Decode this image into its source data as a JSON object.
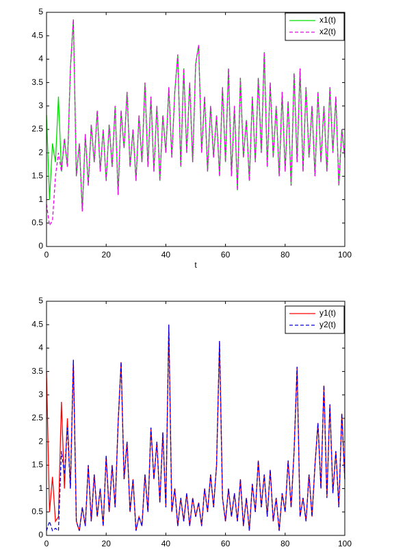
{
  "chart_data": [
    {
      "type": "line",
      "xlabel": "t",
      "legend": "upper right",
      "xlim": [
        0,
        100
      ],
      "ylim": [
        0,
        5
      ],
      "xticks": [
        0,
        20,
        40,
        60,
        80,
        100
      ],
      "yticks": [
        0,
        0.5,
        1,
        1.5,
        2,
        2.5,
        3,
        3.5,
        4,
        4.5,
        5
      ],
      "x": [
        0,
        1,
        2,
        3,
        4,
        5,
        6,
        7,
        8,
        9,
        10,
        11,
        12,
        13,
        14,
        15,
        16,
        17,
        18,
        19,
        20,
        21,
        22,
        23,
        24,
        25,
        26,
        27,
        28,
        29,
        30,
        31,
        32,
        33,
        34,
        35,
        36,
        37,
        38,
        39,
        40,
        41,
        42,
        43,
        44,
        45,
        46,
        47,
        48,
        49,
        50,
        51,
        52,
        53,
        54,
        55,
        56,
        57,
        58,
        59,
        60,
        61,
        62,
        63,
        64,
        65,
        66,
        67,
        68,
        69,
        70,
        71,
        72,
        73,
        74,
        75,
        76,
        77,
        78,
        79,
        80,
        81,
        82,
        83,
        84,
        85,
        86,
        87,
        88,
        89,
        90,
        91,
        92,
        93,
        94,
        95,
        96,
        97,
        98,
        99,
        100
      ],
      "series": [
        {
          "name": "x1(t)",
          "color": "#00dd00",
          "dash": false,
          "values": [
            2.8,
            1.0,
            2.2,
            1.8,
            3.2,
            1.6,
            2.3,
            1.7,
            3.8,
            4.85,
            1.5,
            2.2,
            0.75,
            2.4,
            1.3,
            2.6,
            1.8,
            2.9,
            1.6,
            2.5,
            1.4,
            2.6,
            1.7,
            3.0,
            1.1,
            2.9,
            2.1,
            3.3,
            1.7,
            2.5,
            1.4,
            2.8,
            1.8,
            3.5,
            1.7,
            3.2,
            1.6,
            3.0,
            1.4,
            2.8,
            2.0,
            3.4,
            1.9,
            3.3,
            4.1,
            1.7,
            3.8,
            2.0,
            3.5,
            1.8,
            3.9,
            4.3,
            2.0,
            3.2,
            1.6,
            3.0,
            1.9,
            2.8,
            1.5,
            3.4,
            1.8,
            3.8,
            1.5,
            3.0,
            1.2,
            3.6,
            1.9,
            2.7,
            1.4,
            3.2,
            1.8,
            3.6,
            2.0,
            4.15,
            1.7,
            3.5,
            1.9,
            3.0,
            1.5,
            3.3,
            1.6,
            3.1,
            1.3,
            3.7,
            1.8,
            3.8,
            1.6,
            3.4,
            1.9,
            3.0,
            1.5,
            3.3,
            1.8,
            3.0,
            1.6,
            3.4,
            2.0,
            3.2,
            1.3,
            2.5,
            1.9
          ]
        },
        {
          "name": "x2(t)",
          "color": "#ee00ee",
          "dash": true,
          "values": [
            0.9,
            0.45,
            0.55,
            1.5,
            2.0,
            1.6,
            2.3,
            1.7,
            3.8,
            4.85,
            1.5,
            2.2,
            0.75,
            2.4,
            1.3,
            2.6,
            1.8,
            2.9,
            1.6,
            2.5,
            1.4,
            2.6,
            1.7,
            3.0,
            1.1,
            2.9,
            2.1,
            3.3,
            1.7,
            2.5,
            1.4,
            2.8,
            1.8,
            3.5,
            1.7,
            3.2,
            1.6,
            3.0,
            1.4,
            2.8,
            2.0,
            3.4,
            1.9,
            3.3,
            4.1,
            1.7,
            3.8,
            2.0,
            3.5,
            1.8,
            3.9,
            4.3,
            2.0,
            3.2,
            1.6,
            3.0,
            1.9,
            2.8,
            1.5,
            3.4,
            1.8,
            3.8,
            1.5,
            3.0,
            1.2,
            3.6,
            1.9,
            2.7,
            1.4,
            3.2,
            1.8,
            3.6,
            2.0,
            4.15,
            1.7,
            3.5,
            1.9,
            3.0,
            1.5,
            3.3,
            1.6,
            3.1,
            1.3,
            3.7,
            1.8,
            3.8,
            1.6,
            3.4,
            1.9,
            3.0,
            1.5,
            3.3,
            1.8,
            3.0,
            1.6,
            3.4,
            2.0,
            3.2,
            1.3,
            2.5,
            1.9
          ]
        }
      ]
    },
    {
      "type": "line",
      "legend": "upper right",
      "xlim": [
        0,
        100
      ],
      "ylim": [
        0,
        5
      ],
      "xticks": [
        0,
        20,
        40,
        60,
        80,
        100
      ],
      "yticks": [
        0,
        0.5,
        1,
        1.5,
        2,
        2.5,
        3,
        3.5,
        4,
        4.5,
        5
      ],
      "x": [
        0,
        1,
        2,
        3,
        4,
        5,
        6,
        7,
        8,
        9,
        10,
        11,
        12,
        13,
        14,
        15,
        16,
        17,
        18,
        19,
        20,
        21,
        22,
        23,
        24,
        25,
        26,
        27,
        28,
        29,
        30,
        31,
        32,
        33,
        34,
        35,
        36,
        37,
        38,
        39,
        40,
        41,
        42,
        43,
        44,
        45,
        46,
        47,
        48,
        49,
        50,
        51,
        52,
        53,
        54,
        55,
        56,
        57,
        58,
        59,
        60,
        61,
        62,
        63,
        64,
        65,
        66,
        67,
        68,
        69,
        70,
        71,
        72,
        73,
        74,
        75,
        76,
        77,
        78,
        79,
        80,
        81,
        82,
        83,
        84,
        85,
        86,
        87,
        88,
        89,
        90,
        91,
        92,
        93,
        94,
        95,
        96,
        97,
        98,
        99,
        100
      ],
      "series": [
        {
          "name": "y1(t)",
          "color": "#ff0000",
          "dash": false,
          "values": [
            3.5,
            0.5,
            1.25,
            0.3,
            0.4,
            2.85,
            1.0,
            2.5,
            1.0,
            3.75,
            0.3,
            0.1,
            0.6,
            0.2,
            1.5,
            0.3,
            1.3,
            0.4,
            1.0,
            0.2,
            1.7,
            0.5,
            1.5,
            0.6,
            2.4,
            3.7,
            1.2,
            2.0,
            0.5,
            1.2,
            0.1,
            0.4,
            0.2,
            1.3,
            0.5,
            2.3,
            1.2,
            2.0,
            0.7,
            2.2,
            0.6,
            4.5,
            0.5,
            1.0,
            0.2,
            0.8,
            0.3,
            0.9,
            0.2,
            0.8,
            0.4,
            0.7,
            0.2,
            1.0,
            0.5,
            1.3,
            0.6,
            1.5,
            4.15,
            0.8,
            0.3,
            1.0,
            0.4,
            0.9,
            0.3,
            1.2,
            0.2,
            0.8,
            0.1,
            1.1,
            0.5,
            1.6,
            0.6,
            1.3,
            0.4,
            1.4,
            0.3,
            0.8,
            0.1,
            0.9,
            0.5,
            1.6,
            0.6,
            1.8,
            3.6,
            0.4,
            0.8,
            0.3,
            1.3,
            0.4,
            1.5,
            2.4,
            1.0,
            3.2,
            0.8,
            2.8,
            0.9,
            1.8,
            0.6,
            2.6,
            1.2
          ]
        },
        {
          "name": "y2(t)",
          "color": "#0000ee",
          "dash": true,
          "values": [
            0.1,
            0.3,
            0.1,
            0.15,
            0.1,
            1.8,
            1.3,
            2.3,
            1.0,
            3.75,
            0.3,
            0.1,
            0.6,
            0.2,
            1.5,
            0.3,
            1.3,
            0.4,
            1.0,
            0.2,
            1.7,
            0.5,
            1.5,
            0.6,
            2.4,
            3.7,
            1.2,
            2.0,
            0.5,
            1.2,
            0.1,
            0.4,
            0.2,
            1.3,
            0.5,
            2.3,
            1.2,
            2.0,
            0.7,
            2.2,
            0.6,
            4.5,
            0.5,
            1.0,
            0.2,
            0.8,
            0.3,
            0.9,
            0.2,
            0.8,
            0.4,
            0.7,
            0.2,
            1.0,
            0.5,
            1.3,
            0.6,
            1.5,
            4.15,
            0.8,
            0.3,
            1.0,
            0.4,
            0.9,
            0.3,
            1.2,
            0.2,
            0.8,
            0.1,
            1.1,
            0.5,
            1.6,
            0.6,
            1.3,
            0.4,
            1.4,
            0.3,
            0.8,
            0.1,
            0.9,
            0.5,
            1.6,
            0.6,
            1.8,
            3.6,
            0.4,
            0.8,
            0.3,
            1.3,
            0.4,
            1.5,
            2.4,
            1.0,
            3.2,
            0.8,
            2.8,
            0.9,
            1.8,
            0.6,
            2.6,
            1.2
          ]
        }
      ]
    }
  ]
}
